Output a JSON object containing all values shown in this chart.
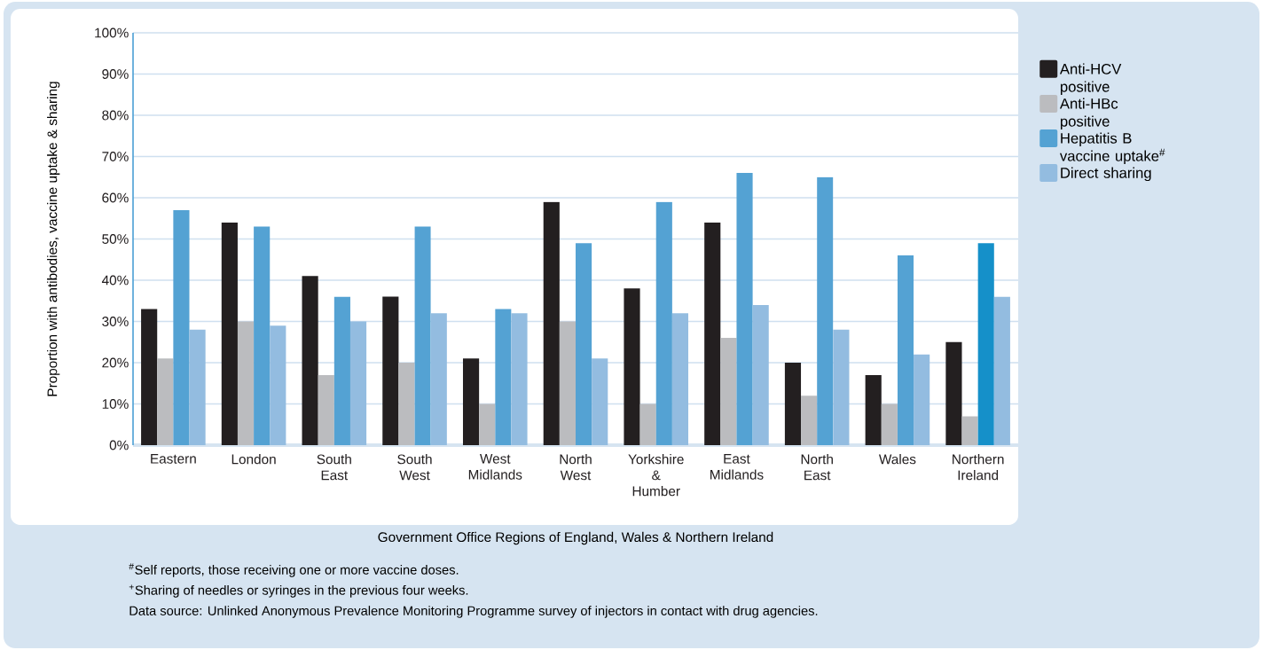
{
  "chart_data": {
    "type": "bar",
    "xlabel": "Government Office Regions of England, Wales & Northern Ireland",
    "ylabel": "Proportion with antibodies, vaccine uptake & sharing",
    "categories": [
      "Eastern",
      "London",
      "South East",
      "South West",
      "West Midlands",
      "North West",
      "Yorkshire & Humber",
      "East Midlands",
      "North East",
      "Wales",
      "Northern Ireland"
    ],
    "series": [
      {
        "name": "Anti-HCV positive",
        "color": "#231f20",
        "values": [
          33,
          54,
          41,
          36,
          21,
          59,
          38,
          54,
          20,
          17,
          25
        ]
      },
      {
        "name": "Anti-HBc positive",
        "color": "#bbbcbf",
        "values": [
          21,
          30,
          17,
          20,
          10,
          30,
          10,
          26,
          12,
          10,
          7
        ]
      },
      {
        "name": "Hepatitis B vaccine uptake$^{#}$",
        "color": "#54a2d3",
        "colors": [
          "#54a2d3",
          "#54a2d3",
          "#54a2d3",
          "#54a2d3",
          "#54a2d3",
          "#54a2d3",
          "#54a2d3",
          "#54a2d3",
          "#54a2d3",
          "#54a2d3",
          "#1590c9"
        ],
        "values": [
          57,
          53,
          36,
          53,
          33,
          49,
          59,
          66,
          65,
          46,
          49
        ]
      },
      {
        "name": "Direct sharing",
        "color": "#93bce0",
        "values": [
          28,
          29,
          30,
          32,
          32,
          21,
          32,
          34,
          28,
          22,
          36
        ]
      }
    ],
    "ylim": [
      0,
      100
    ],
    "yticks": [
      {
        "value": 0,
        "label": "0%"
      },
      {
        "value": 10,
        "label": "10%"
      },
      {
        "value": 20,
        "label": "20%"
      },
      {
        "value": 30,
        "label": "30%"
      },
      {
        "value": 40,
        "label": "40%"
      },
      {
        "value": 50,
        "label": "50%"
      },
      {
        "value": 60,
        "label": "60%"
      },
      {
        "value": 70,
        "label": "70%"
      },
      {
        "value": 80,
        "label": "80%"
      },
      {
        "value": 90,
        "label": "90%"
      },
      {
        "value": 100,
        "label": "100%"
      }
    ],
    "grid": "y",
    "legend": "right",
    "annotations": [
      "$^{#}$Self reports, those receiving one or more vaccine doses.",
      "$^{+}$Sharing of needles or syringes in the previous four weeks.",
      "Data source: Unlinked Anonymous Prevalence Monitoring Programme survey of injectors in contact with drug agencies."
    ]
  }
}
